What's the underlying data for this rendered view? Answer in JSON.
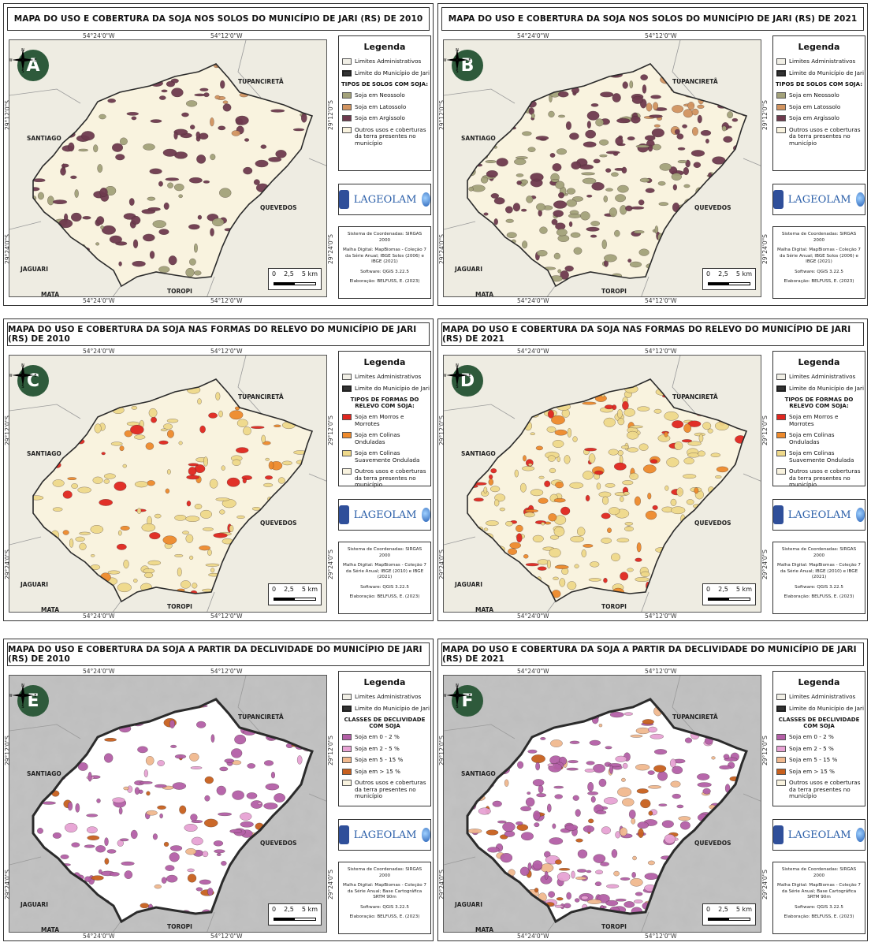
{
  "common": {
    "legend_title": "Legenda",
    "limits_admin": "Limites Administrativos",
    "limit_municipio": "Limite do Município de Jari",
    "other_uses": "Outros usos e coberturas da terra presentes no município",
    "coords": {
      "top_left": "54°24'0\"W",
      "top_right": "54°12'0\"W",
      "left_upper": "29°12'0\"S",
      "left_lower": "29°24'0\"S"
    },
    "places": {
      "tupanciretã": "TUPANCIRETÃ",
      "santiago": "SANTIAGO",
      "quevedos": "QUEVEDOS",
      "jaguari": "JAGUARI",
      "mata": "MATA",
      "toropi": "TOROPI"
    },
    "scale": {
      "n0": "0",
      "n1": "2,5",
      "n2": "5 km"
    },
    "compass": {
      "n": "N",
      "s": "S",
      "e": "E",
      "w": "W"
    },
    "logo": "LAGEOLAM",
    "meta": {
      "sistema": "Sistema de Coordenadas: SIRGAS 2000",
      "software": "Software: QGIS 3.22.5",
      "elaboracao": "Elaboração: BELFUSS, E. (2023)"
    },
    "colors": {
      "limits_admin": "#f1efe6",
      "limit_municipio": "#333333",
      "other_uses": "#f9f3df"
    }
  },
  "panels": [
    {
      "id": "A",
      "title": "MAPA DO USO E COBERTURA DA SOJA NOS SOLOS DO MUNICÍPIO DE JARI (RS) DE 2010",
      "section": "TIPOS DE SOLOS COM SOJA:",
      "items": [
        {
          "label": "Soja em Neossolo",
          "color": "#a3a27a"
        },
        {
          "label": "Soja em Latossolo",
          "color": "#d29460"
        },
        {
          "label": "Soja em Argissolo",
          "color": "#6e3a4e"
        }
      ],
      "malha": "Malha Digital: MapBiomas - Coleção 7 da Série Anual; IBGE Solos (2006) e IBGE (2021)"
    },
    {
      "id": "B",
      "title": "MAPA DO USO E COBERTURA DA SOJA NOS SOLOS DO MUNICÍPIO DE JARI (RS) DE 2021",
      "section": "TIPOS DE SOLOS COM SOJA:",
      "items": [
        {
          "label": "Soja em Neossolo",
          "color": "#a3a27a"
        },
        {
          "label": "Soja em Latossolo",
          "color": "#d29460"
        },
        {
          "label": "Soja em Argissolo",
          "color": "#6e3a4e"
        }
      ],
      "malha": "Malha Digital: MapBiomas - Coleção 7 da Série Anual; IBGE Solos (2006) e IBGE (2021)"
    },
    {
      "id": "C",
      "title": "MAPA DO USO E COBERTURA DA SOJA NAS FORMAS DO RELEVO DO MUNICÍPIO DE JARI (RS) DE 2010",
      "section": "TIPOS DE FORMAS DO RELEVO COM SOJA:",
      "items": [
        {
          "label": "Soja em Morros e Morrotes",
          "color": "#e0261f"
        },
        {
          "label": "Soja em Colinas Onduladas",
          "color": "#ee8a2c"
        },
        {
          "label": "Soja em Colinas Suavemente Ondulada",
          "color": "#efd98a"
        }
      ],
      "malha": "Malha Digital: MapBiomas - Coleção 7 da Série Anual; IBGE (2010) e IBGE (2021)"
    },
    {
      "id": "D",
      "title": "MAPA DO USO E COBERTURA DA SOJA NAS FORMAS DO RELEVO DO MUNICÍPIO DE JARI (RS) DE 2021",
      "section": "TIPOS DE FORMAS DO RELEVO COM SOJA:",
      "items": [
        {
          "label": "Soja em Morros e Morrotes",
          "color": "#e0261f"
        },
        {
          "label": "Soja em Colinas Onduladas",
          "color": "#ee8a2c"
        },
        {
          "label": "Soja em Colinas Suavemente Ondulada",
          "color": "#efd98a"
        }
      ],
      "malha": "Malha Digital: MapBiomas - Coleção 7 da Série Anual; IBGE (2010) e IBGE (2021)"
    },
    {
      "id": "E",
      "title": "MAPA DO USO E COBERTURA DA SOJA A PARTIR DA DECLIVIDADE DO MUNICÍPIO DE JARI (RS) DE 2010",
      "section": "CLASSES DE DECLIVIDADE COM SOJA",
      "items": [
        {
          "label": "Soja em 0 - 2 %",
          "color": "#b45fa7"
        },
        {
          "label": "Soja em 2 - 5 %",
          "color": "#e7a3d4"
        },
        {
          "label": "Soja em 5 - 15 %",
          "color": "#f1b98f"
        },
        {
          "label": "Soja em > 15 %",
          "color": "#c8601e"
        }
      ],
      "malha": "Malha Digital: MapBiomas - Coleção 7 da Série Anual; Base Cartográfica SRTM 90m"
    },
    {
      "id": "F",
      "title": "MAPA DO USO E COBERTURA DA SOJA A PARTIR DA DECLIVIDADE DO MUNICÍPIO DE JARI (RS) DE 2021",
      "section": "CLASSES DE DECLIVIDADE COM SOJA",
      "items": [
        {
          "label": "Soja em 0 - 2 %",
          "color": "#b45fa7"
        },
        {
          "label": "Soja em 2 - 5 %",
          "color": "#e7a3d4"
        },
        {
          "label": "Soja em 5 - 15 %",
          "color": "#f1b98f"
        },
        {
          "label": "Soja em > 15 %",
          "color": "#c8601e"
        }
      ],
      "malha": "Malha Digital: MapBiomas - Coleção 7 da Série Anual; Base Cartográfica SRTM 90m"
    }
  ]
}
